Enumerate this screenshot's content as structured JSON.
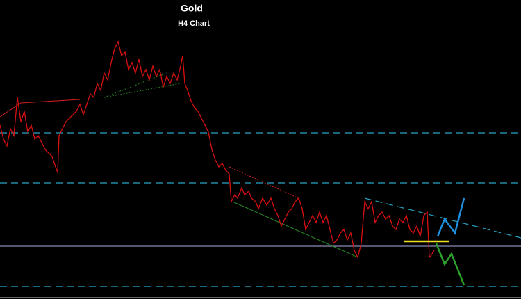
{
  "chart_data": {
    "title": "Gold",
    "subtitle": "H4 Chart"
  }
}
